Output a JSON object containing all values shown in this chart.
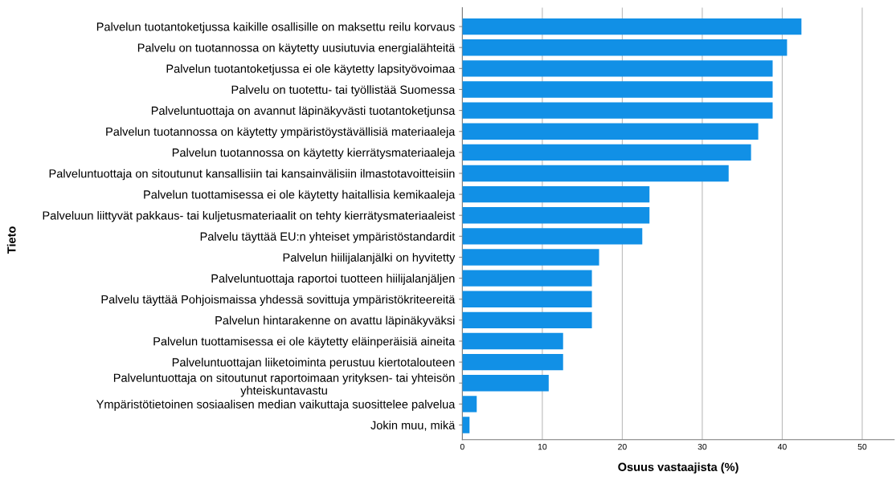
{
  "chart_data": {
    "type": "bar",
    "orientation": "horizontal",
    "xlabel": "Osuus vastaajista (%)",
    "ylabel": "Tieto",
    "categories": [
      "Palvelun tuotantoketjussa kaikille osallisille on maksettu reilu korvaus",
      "Palvelu on tuotannossa on käytetty uusiutuvia energialähteitä",
      "Palvelun tuotantoketjussa ei ole käytetty lapsityövoimaa",
      "Palvelu on tuotettu- tai työllistää Suomessa",
      "Palveluntuottaja on avannut läpinäkyvästi tuotantoketjunsa",
      "Palvelun tuotannossa on käytetty ympäristöystävällisiä materiaaleja",
      "Palvelun tuotannossa on käytetty kierrätysmateriaaleja",
      "Palveluntuottaja on sitoutunut kansallisiin tai kansainvälisiin ilmastotavoitteisiin",
      "Palvelun tuottamisessa ei ole käytetty haitallisia kemikaaleja",
      "Palveluun liittyvät pakkaus- tai kuljetusmateriaalit on tehty kierrätysmateriaaleist",
      "Palvelu täyttää EU:n yhteiset ympäristöstandardit",
      "Palvelun hiilijalanjälki on hyvitetty",
      "Palveluntuottaja raportoi tuotteen hiilijalanjäljen",
      "Palvelu täyttää Pohjoismaissa yhdessä sovittuja ympäristökriteereitä",
      "Palvelun hintarakenne on avattu läpinäkyväksi",
      "Palvelun tuottamisessa ei ole käytetty eläinperäisiä aineita",
      "Palveluntuottajan liiketoiminta perustuu kiertotalouteen",
      "Palveluntuottaja on sitoutunut raportoimaan yrityksen- tai yhteisön\nyhteiskuntavastu",
      "Ympäristötietoinen sosiaalisen median vaikuttaja suosittelee palvelua",
      "Jokin muu, mikä"
    ],
    "values": [
      42.4,
      40.6,
      38.8,
      38.8,
      38.8,
      37.0,
      36.1,
      33.3,
      23.4,
      23.4,
      22.5,
      17.1,
      16.2,
      16.2,
      16.2,
      12.6,
      12.6,
      10.8,
      1.8,
      0.9
    ],
    "color": "#1190e6",
    "xlim": [
      0,
      54
    ],
    "xticks": [
      0,
      10,
      20,
      30,
      40,
      50
    ],
    "grid": "x"
  }
}
